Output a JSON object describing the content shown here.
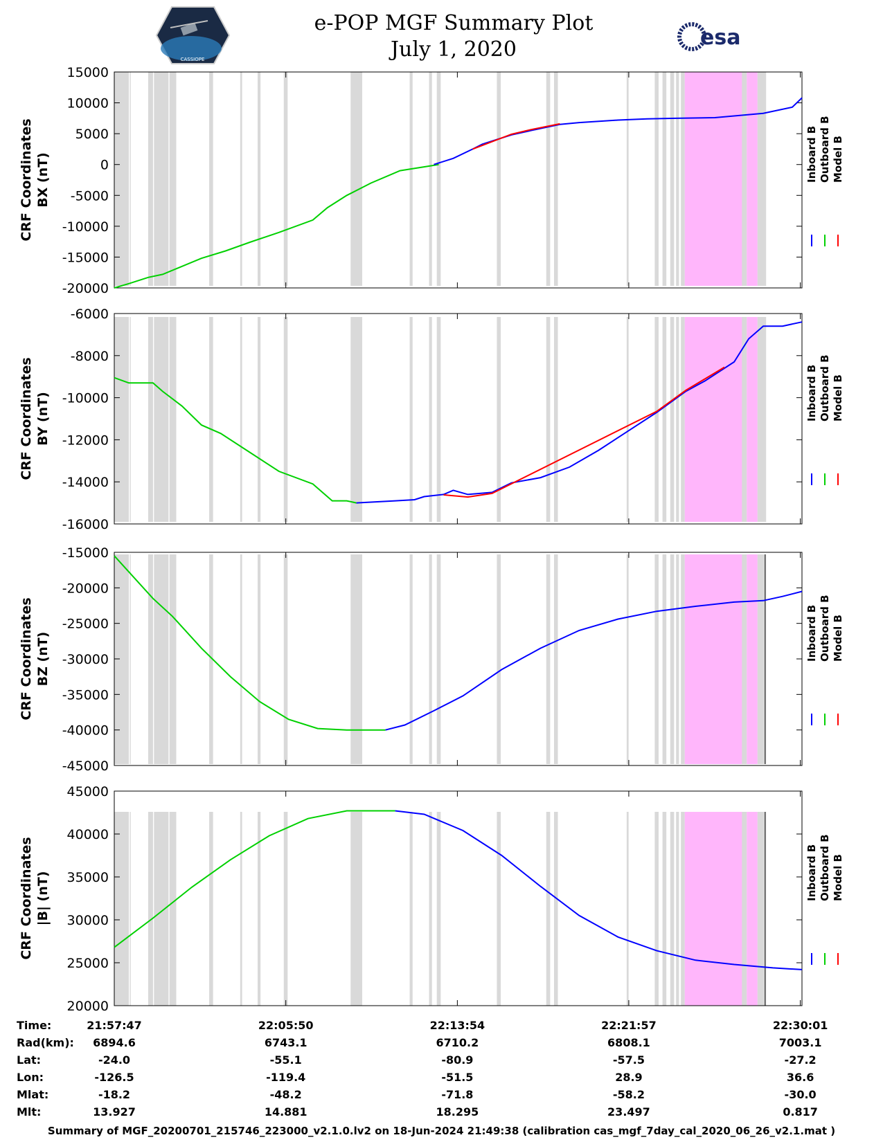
{
  "header": {
    "title": "e-POP MGF Summary Plot",
    "date": "July 1, 2020",
    "left_logo_text": "CASSIOPE",
    "right_logo_text": "esa"
  },
  "colors": {
    "inboard": "#0000ff",
    "outboard": "#00d000",
    "model": "#ff0000",
    "gap_shade": "#d9d9d9",
    "pink_shade": "#ffb6fb"
  },
  "chart_data": [
    {
      "type": "line",
      "ylabel_line1": "CRF Coordinates",
      "ylabel_line2": "BX (nT)",
      "ylim": [
        -20000,
        15000
      ],
      "yticks": [
        "15000",
        "10000",
        "5000",
        "0",
        "-5000",
        "-10000",
        "-15000",
        "-20000"
      ],
      "legend": [
        "Inboard B",
        "Outboard B",
        "Model B"
      ],
      "series": [
        {
          "name": "Outboard B",
          "x": [
            0,
            1.5,
            3.5,
            5,
            7,
            9,
            11.5,
            14,
            17,
            20.5,
            22,
            24,
            26.5,
            29.5,
            33.5
          ],
          "y": [
            -20000,
            -19300,
            -18300,
            -17800,
            -16500,
            -15200,
            -14000,
            -12600,
            -11000,
            -9000,
            -7000,
            -5000,
            -3000,
            -1000,
            0
          ]
        },
        {
          "name": "Inboard B",
          "x": [
            33,
            35,
            37,
            38,
            41,
            43,
            46,
            48,
            52,
            55,
            58,
            62,
            67,
            70,
            71
          ],
          "y": [
            0,
            1000,
            2500,
            3300,
            4800,
            5500,
            6500,
            6800,
            7200,
            7400,
            7500,
            7600,
            8300,
            9300,
            10800
          ]
        },
        {
          "name": "Model B",
          "x": [
            37,
            41,
            43,
            46
          ],
          "y": [
            2500,
            4900,
            5650,
            6600
          ]
        }
      ]
    },
    {
      "type": "line",
      "ylabel_line1": "CRF Coordinates",
      "ylabel_line2": "BY (nT)",
      "ylim": [
        -16000,
        -6000
      ],
      "yticks": [
        "-6000",
        "-8000",
        "-10000",
        "-12000",
        "-14000",
        "-16000"
      ],
      "legend": [
        "Inboard B",
        "Outboard B",
        "Model B"
      ],
      "series": [
        {
          "name": "Outboard B",
          "x": [
            0,
            1.5,
            4,
            5,
            7,
            9,
            11,
            14,
            17,
            20.5,
            22.5,
            24,
            25
          ],
          "y": [
            -9050,
            -9300,
            -9300,
            -9700,
            -10400,
            -11300,
            -11700,
            -12600,
            -13500,
            -14100,
            -14900,
            -14900,
            -15000
          ]
        },
        {
          "name": "Inboard B",
          "x": [
            25,
            27,
            29,
            31,
            32,
            34,
            35,
            36.5,
            39,
            41,
            44,
            47,
            50,
            53,
            56,
            59,
            61,
            63,
            64,
            65.5,
            67,
            69,
            71
          ],
          "y": [
            -15000,
            -14950,
            -14900,
            -14850,
            -14700,
            -14600,
            -14400,
            -14600,
            -14500,
            -14050,
            -13800,
            -13300,
            -12500,
            -11600,
            -10700,
            -9700,
            -9200,
            -8600,
            -8300,
            -7200,
            -6600,
            -6600,
            -6400
          ]
        },
        {
          "name": "Model B",
          "x": [
            34,
            36.5,
            39,
            56,
            59,
            63
          ],
          "y": [
            -14620,
            -14720,
            -14550,
            -10650,
            -9650,
            -8550
          ]
        }
      ]
    },
    {
      "type": "line",
      "ylabel_line1": "CRF Coordinates",
      "ylabel_line2": "BZ (nT)",
      "ylim": [
        -45000,
        -15000
      ],
      "yticks": [
        "-15000",
        "-20000",
        "-25000",
        "-30000",
        "-35000",
        "-40000",
        "-45000"
      ],
      "legend": [
        "Inboard B",
        "Outboard B",
        "Model B"
      ],
      "series": [
        {
          "name": "Outboard B",
          "x": [
            0,
            2,
            4,
            6,
            9,
            12,
            15,
            18,
            21,
            24,
            27,
            28
          ],
          "y": [
            -15500,
            -18500,
            -21500,
            -24000,
            -28500,
            -32500,
            -36000,
            -38500,
            -39800,
            -40000,
            -40000,
            -40000
          ]
        },
        {
          "name": "Inboard B",
          "x": [
            28,
            30,
            33,
            36,
            40,
            44,
            48,
            52,
            56,
            60,
            64,
            67,
            69,
            71
          ],
          "y": [
            -40000,
            -39300,
            -37300,
            -35200,
            -31500,
            -28500,
            -26000,
            -24400,
            -23300,
            -22600,
            -22000,
            -21800,
            -21200,
            -20500
          ]
        }
      ]
    },
    {
      "type": "line",
      "ylabel_line1": "CRF Coordinates",
      "ylabel_line2": "|B| (nT)",
      "ylim": [
        20000,
        45000
      ],
      "yticks": [
        "45000",
        "40000",
        "35000",
        "30000",
        "25000",
        "20000"
      ],
      "legend": [
        "Inboard B",
        "Outboard B",
        "Model B"
      ],
      "series": [
        {
          "name": "Outboard B",
          "x": [
            0,
            4,
            8,
            12,
            16,
            20,
            24,
            27,
            29
          ],
          "y": [
            26800,
            30200,
            33800,
            37000,
            39800,
            41800,
            42700,
            42700,
            42700
          ]
        },
        {
          "name": "Inboard B",
          "x": [
            29,
            32,
            36,
            40,
            44,
            48,
            52,
            56,
            60,
            64,
            68,
            71
          ],
          "y": [
            42700,
            42300,
            40400,
            37500,
            33900,
            30500,
            28000,
            26400,
            25300,
            24800,
            24400,
            24200
          ]
        }
      ]
    }
  ],
  "x_axis": {
    "range_minutes": [
      0,
      71
    ],
    "tick_positions": [
      0,
      17.71,
      35.42,
      53.12,
      70.83
    ]
  },
  "table": {
    "row_labels": [
      "Time:",
      "Rad(km):",
      "Lat:",
      "Lon:",
      "Mlat:",
      "Mlt:"
    ],
    "columns": [
      [
        "21:57:47",
        "6894.6",
        "-24.0",
        "-126.5",
        "-18.2",
        "13.927"
      ],
      [
        "22:05:50",
        "6743.1",
        "-55.1",
        "-119.4",
        "-48.2",
        "14.881"
      ],
      [
        "22:13:54",
        "6710.2",
        "-80.9",
        "-51.5",
        "-71.8",
        "18.295"
      ],
      [
        "22:21:57",
        "6808.1",
        "-57.5",
        "28.9",
        "-58.2",
        "23.497"
      ],
      [
        "22:30:01",
        "7003.1",
        "-27.2",
        "36.6",
        "-30.0",
        "0.817"
      ]
    ]
  },
  "gaps": {
    "gray": [
      [
        0,
        1.5
      ],
      [
        1.6,
        1.7
      ],
      [
        3.5,
        4
      ],
      [
        4.1,
        5.6
      ],
      [
        5.7,
        6.4
      ],
      [
        9.8,
        10.2
      ],
      [
        13,
        13.2
      ],
      [
        14.8,
        15.1
      ],
      [
        17.5,
        17.9
      ],
      [
        24.4,
        25.6
      ],
      [
        30.5,
        30.8
      ],
      [
        32.5,
        32.8
      ],
      [
        33.3,
        33.7
      ],
      [
        39.5,
        39.9
      ],
      [
        44.6,
        45
      ],
      [
        45.4,
        45.8
      ],
      [
        52.9,
        53.1
      ],
      [
        55.8,
        56.2
      ],
      [
        56.6,
        57
      ],
      [
        57.4,
        57.8
      ],
      [
        58,
        58.3
      ],
      [
        58.5,
        58.9
      ],
      [
        64,
        64.3
      ],
      [
        64.6,
        65.3
      ],
      [
        66.4,
        67.3
      ]
    ],
    "pink": [
      [
        58.9,
        64.8
      ],
      [
        65.3,
        66.4
      ]
    ]
  },
  "footer": "Summary of MGF_20200701_215746_223000_v2.1.0.lv2 on 18-Jun-2024 21:49:38 (calibration cas_mgf_7day_cal_2020_06_26_v2.1.mat )"
}
